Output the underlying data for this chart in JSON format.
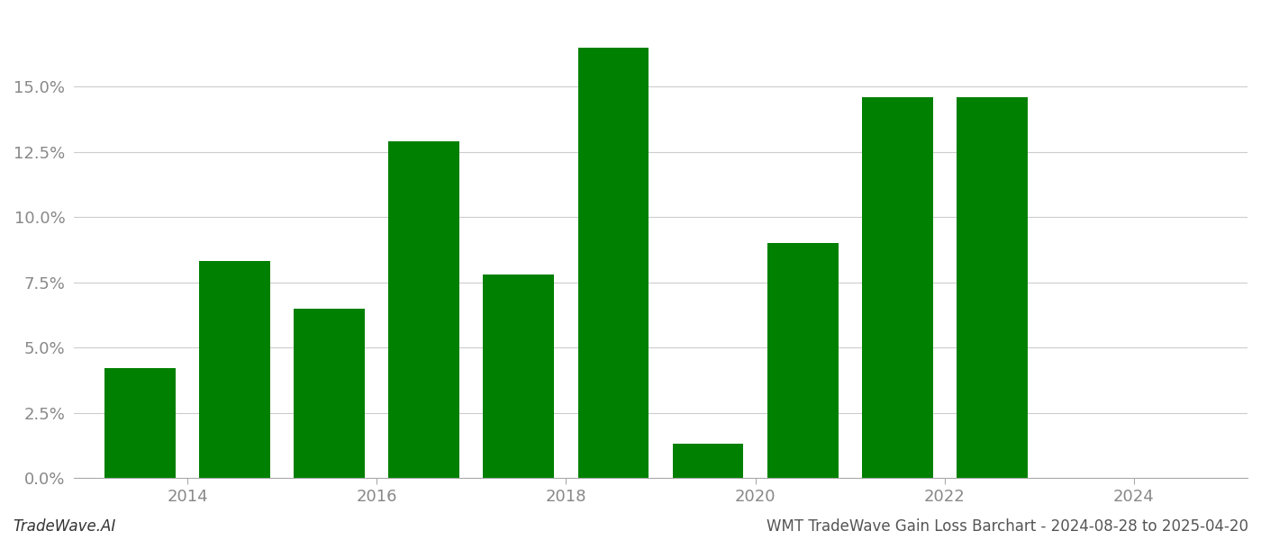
{
  "bar_centers": [
    2013.5,
    2014.5,
    2015.5,
    2016.5,
    2017.5,
    2018.5,
    2019.5,
    2020.5,
    2021.5,
    2022.5
  ],
  "values": [
    0.042,
    0.083,
    0.065,
    0.129,
    0.078,
    0.165,
    0.013,
    0.09,
    0.146,
    0.146
  ],
  "bar_color": "#008000",
  "background_color": "#ffffff",
  "grid_color": "#cccccc",
  "axis_label_color": "#888888",
  "ylabel_ticks": [
    0.0,
    0.025,
    0.05,
    0.075,
    0.1,
    0.125,
    0.15
  ],
  "xticks": [
    2014,
    2016,
    2018,
    2020,
    2022,
    2024
  ],
  "xlim": [
    2012.8,
    2025.2
  ],
  "ylim": [
    0.0,
    0.178
  ],
  "footer_left": "TradeWave.AI",
  "footer_right": "WMT TradeWave Gain Loss Barchart - 2024-08-28 to 2025-04-20",
  "bar_width": 0.75,
  "figsize": [
    14.0,
    6.0
  ],
  "dpi": 100
}
